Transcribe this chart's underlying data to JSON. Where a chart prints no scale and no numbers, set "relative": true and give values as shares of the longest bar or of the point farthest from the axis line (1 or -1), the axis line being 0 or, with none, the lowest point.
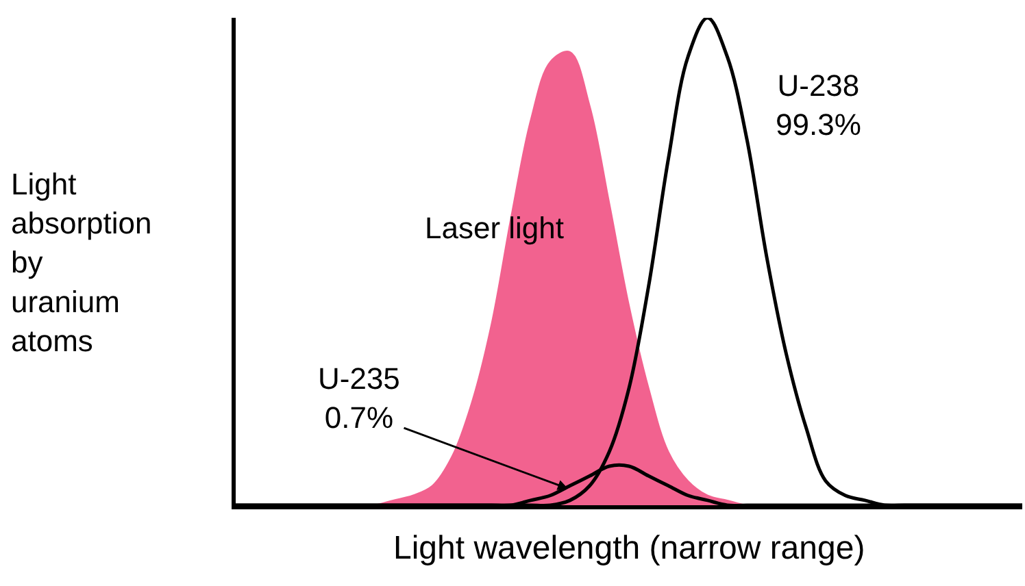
{
  "chart_data": {
    "type": "line",
    "relative": true,
    "legend": false,
    "xlabel": "Light wavelength (narrow range)",
    "ylabel": "Light\nabsorption\nby\nuranium\natoms",
    "categories": [
      null,
      null,
      null,
      null,
      null,
      null,
      null,
      null,
      null,
      null,
      null,
      null,
      null,
      null,
      null,
      null,
      null,
      null,
      null,
      null,
      null,
      null,
      null,
      null,
      null,
      null,
      null,
      null,
      null,
      null,
      null,
      null,
      null,
      null,
      null,
      null,
      null,
      null,
      null,
      null,
      null
    ],
    "series": [
      {
        "name": "Laser light",
        "type": "area",
        "color": "#f2628f",
        "values": [
          0,
          0,
          0,
          0,
          0,
          0,
          0,
          0,
          0.01,
          0.02,
          0.04,
          0.1,
          0.21,
          0.37,
          0.59,
          0.79,
          0.91,
          0.93,
          0.82,
          0.62,
          0.41,
          0.24,
          0.11,
          0.05,
          0.02,
          0.01,
          0,
          0,
          0,
          0,
          0,
          0,
          0,
          0,
          0,
          0,
          0,
          0,
          0,
          0,
          0
        ]
      },
      {
        "name": "U-238\n99.3%",
        "color": "#000000",
        "values": [
          0,
          0,
          0,
          0,
          0,
          0,
          0,
          0,
          0,
          0,
          0,
          0,
          0,
          0,
          0,
          0,
          0,
          0.01,
          0.04,
          0.11,
          0.24,
          0.45,
          0.71,
          0.92,
          1.0,
          0.92,
          0.75,
          0.51,
          0.31,
          0.16,
          0.05,
          0.02,
          0.01,
          0,
          0,
          0,
          0,
          0,
          0,
          0,
          0
        ]
      },
      {
        "name": "U-235\n0.7%",
        "color": "#000000",
        "values": [
          0,
          0,
          0,
          0,
          0,
          0,
          0,
          0,
          0,
          0,
          0,
          0,
          0,
          0,
          0,
          0.01,
          0.02,
          0.04,
          0.06,
          0.08,
          0.08,
          0.06,
          0.04,
          0.02,
          0.01,
          0,
          0,
          0,
          0,
          0,
          0,
          0,
          0,
          0,
          0,
          0,
          0,
          0,
          0,
          0,
          0
        ]
      }
    ]
  }
}
